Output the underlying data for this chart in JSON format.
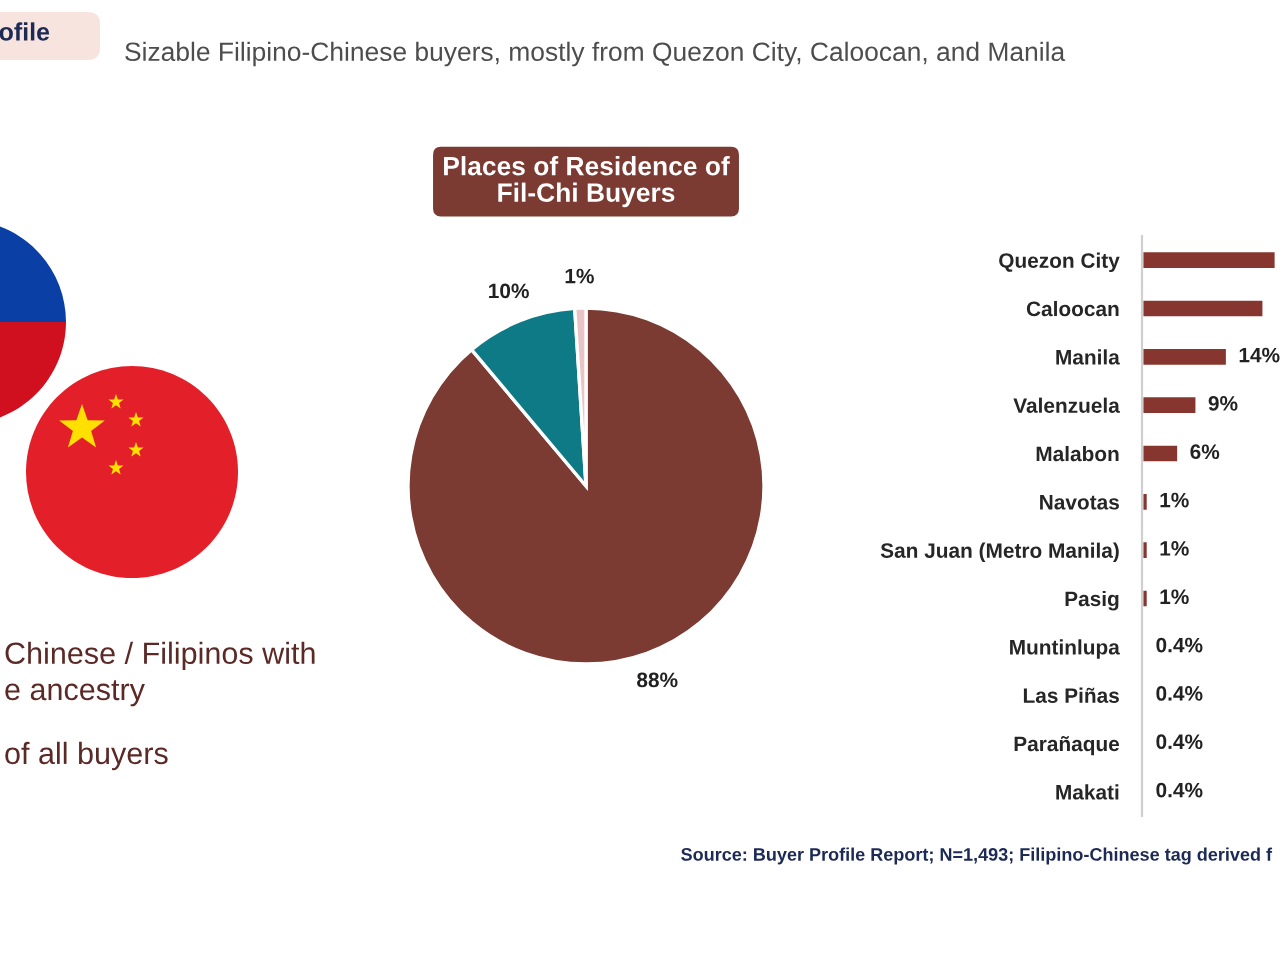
{
  "chart_data": [
    {
      "type": "other",
      "title": "Sizable Filipino-Chinese buyers, mostly from Quezon City, Caloocan, and Manila",
      "annotations": [
        "ofile",
        "Chinese / Filipinos with\ne ancestry",
        "of all buyers",
        "Source: Buyer Profile Report; N=1,493; Filipino-Chinese tag derived f"
      ]
    },
    {
      "type": "pie",
      "title": "Places of Residence of\nFil-Chi Buyers",
      "categories": [
        null,
        null,
        null
      ],
      "values": [
        88,
        10,
        1
      ],
      "colors": [
        "#7b3a32",
        "#0d7a85",
        "#e8c4c6"
      ],
      "value_labels": [
        "88%",
        "10%",
        "1%"
      ]
    },
    {
      "type": "bar",
      "orientation": "horizontal",
      "categories": [
        "Quezon City",
        "Caloocan",
        "Manila",
        "Valenzuela",
        "Malabon",
        "Navotas",
        "San Juan (Metro Manila)",
        "Pasig",
        "Muntinlupa",
        "Las Piñas",
        "Parañaque",
        "Makati"
      ],
      "values": [
        22,
        20,
        14,
        9,
        6,
        1,
        1,
        1,
        0.4,
        0.4,
        0.4,
        0.4
      ],
      "color": "#87362f",
      "value_labels": [
        null,
        null,
        "14%",
        "9%",
        "6%",
        "1%",
        "1%",
        "1%",
        "0.4%",
        "0.4%",
        "0.4%",
        "0.4%"
      ],
      "tick_labels": "y"
    }
  ]
}
